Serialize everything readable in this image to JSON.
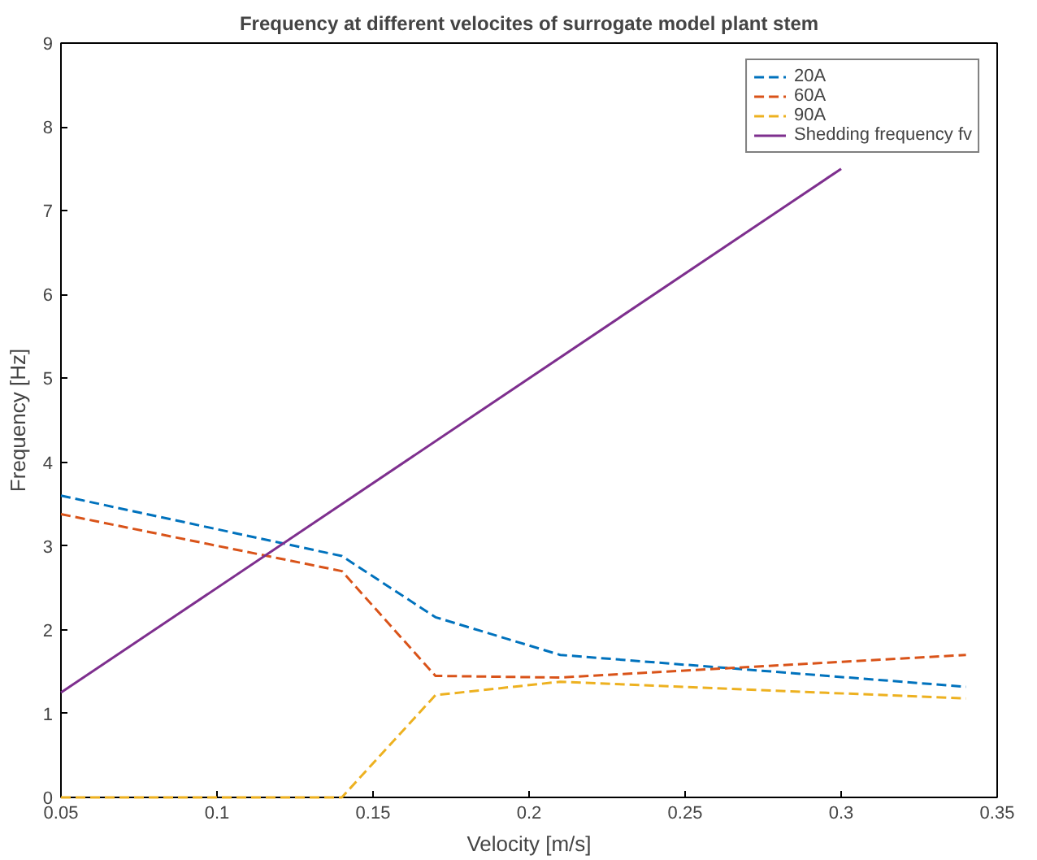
{
  "chart_data": {
    "type": "line",
    "title": "Frequency at different velocites of surrogate model plant stem",
    "xlabel": "Velocity [m/s]",
    "ylabel": "Frequency [Hz]",
    "x": [
      0.05,
      0.14,
      0.17,
      0.21,
      0.34
    ],
    "series": [
      {
        "name": "20A",
        "color": "#0072bd",
        "line_style": "dashed",
        "values": [
          3.6,
          2.88,
          2.15,
          1.7,
          1.32
        ]
      },
      {
        "name": "60A",
        "color": "#d95319",
        "line_style": "dashed",
        "values": [
          3.38,
          2.7,
          1.45,
          1.43,
          1.7
        ]
      },
      {
        "name": "90A",
        "color": "#edb120",
        "line_style": "dashed",
        "values": [
          0,
          0,
          1.22,
          1.38,
          1.18
        ]
      },
      {
        "name": "Shedding frequency fv",
        "color": "#7e2f8e",
        "line_style": "solid",
        "x": [
          0.05,
          0.3
        ],
        "values": [
          1.25,
          7.5
        ]
      }
    ],
    "xlim": [
      0.05,
      0.35
    ],
    "xticks": [
      0.05,
      0.1,
      0.15,
      0.2,
      0.25,
      0.3,
      0.35
    ],
    "ylim": [
      0,
      9
    ],
    "yticks": [
      0,
      1,
      2,
      3,
      4,
      5,
      6,
      7,
      8,
      9
    ],
    "grid": false,
    "legend": "top right",
    "marker": "none"
  }
}
